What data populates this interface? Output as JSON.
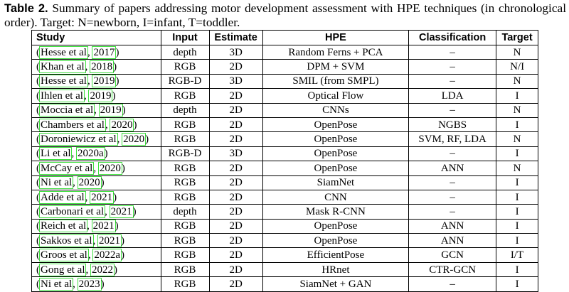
{
  "caption": {
    "label": "Table 2.",
    "text": " Summary of papers addressing motor development assessment with HPE techniques (in chronological order). Target: N=newborn, I=infant, T=toddler."
  },
  "headers": [
    "Study",
    "Input",
    "Estimate",
    "HPE",
    "Classification",
    "Target"
  ],
  "rows": [
    {
      "author": "Hesse et al",
      "year": "2017",
      "input": "depth",
      "estimate": "3D",
      "hpe": "Random Ferns + PCA",
      "classification": "–",
      "target": "N"
    },
    {
      "author": "Khan et al",
      "year": "2018",
      "input": "RGB",
      "estimate": "2D",
      "hpe": "DPM + SVM",
      "classification": "–",
      "target": "N/I"
    },
    {
      "author": "Hesse et al",
      "year": "2019",
      "input": "RGB-D",
      "estimate": "3D",
      "hpe": "SMIL (from SMPL)",
      "classification": "–",
      "target": "N"
    },
    {
      "author": "Ihlen et al",
      "year": "2019",
      "input": "RGB",
      "estimate": "2D",
      "hpe": "Optical Flow",
      "classification": "LDA",
      "target": "I"
    },
    {
      "author": "Moccia et al",
      "year": "2019",
      "input": "depth",
      "estimate": "2D",
      "hpe": "CNNs",
      "classification": "–",
      "target": "N"
    },
    {
      "author": "Chambers et al",
      "year": "2020",
      "input": "RGB",
      "estimate": "2D",
      "hpe": "OpenPose",
      "classification": "NGBS",
      "target": "I"
    },
    {
      "author": "Doroniewicz et al",
      "year": "2020",
      "input": "RGB",
      "estimate": "2D",
      "hpe": "OpenPose",
      "classification": "SVM, RF, LDA",
      "target": "N"
    },
    {
      "author": "Li et al",
      "year": "2020a",
      "input": "RGB-D",
      "estimate": "3D",
      "hpe": "OpenPose",
      "classification": "–",
      "target": "I"
    },
    {
      "author": "McCay et al",
      "year": "2020",
      "input": "RGB",
      "estimate": "2D",
      "hpe": "OpenPose",
      "classification": "ANN",
      "target": "N"
    },
    {
      "author": "Ni et al",
      "year": "2020",
      "input": "RGB",
      "estimate": "2D",
      "hpe": "SiamNet",
      "classification": "–",
      "target": "I"
    },
    {
      "author": "Adde et al",
      "year": "2021",
      "input": "RGB",
      "estimate": "2D",
      "hpe": "CNN",
      "classification": "–",
      "target": "I"
    },
    {
      "author": "Carbonari et al",
      "year": "2021",
      "input": "depth",
      "estimate": "2D",
      "hpe": "Mask R-CNN",
      "classification": "–",
      "target": "I"
    },
    {
      "author": "Reich et al",
      "year": "2021",
      "input": "RGB",
      "estimate": "2D",
      "hpe": "OpenPose",
      "classification": "ANN",
      "target": "I"
    },
    {
      "author": "Sakkos et al",
      "year": "2021",
      "input": "RGB",
      "estimate": "2D",
      "hpe": "OpenPose",
      "classification": "ANN",
      "target": "I"
    },
    {
      "author": "Groos et al",
      "year": "2022a",
      "input": "RGB",
      "estimate": "2D",
      "hpe": "EfficientPose",
      "classification": "GCN",
      "target": "I/T"
    },
    {
      "author": "Gong et al",
      "year": "2022",
      "input": "RGB",
      "estimate": "2D",
      "hpe": "HRnet",
      "classification": "CTR-GCN",
      "target": "I"
    },
    {
      "author": "Ni et al",
      "year": "2023",
      "input": "RGB",
      "estimate": "2D",
      "hpe": "SiamNet + GAN",
      "classification": "–",
      "target": "I"
    }
  ]
}
